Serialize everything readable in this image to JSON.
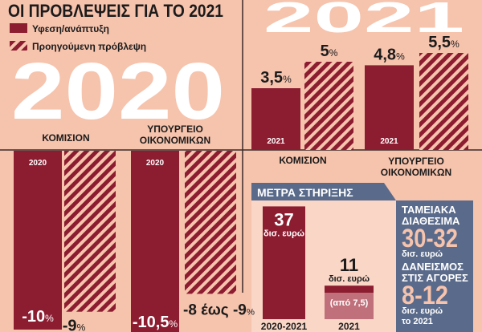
{
  "title": "ΟΙ ΠΡΟΒΛΕΨΕΙΣ ΓΙΑ ΤΟ 2021",
  "legend": [
    {
      "label": "Υφεση/ανάπτυξη",
      "style": "solid"
    },
    {
      "label": "Προηγούμενη πρόβλεψη",
      "style": "hatched"
    }
  ],
  "colors": {
    "background": "#f6c3ad",
    "bar": "#8c1c30",
    "bar_light": "#c0707a",
    "panel": "#5a6a8a",
    "panel_text_accent": "#f6c3ad",
    "inner_bg": "#f9d6c6"
  },
  "percent_sign": "%",
  "chart_data": [
    {
      "type": "bar",
      "backdrop_label": "2020",
      "categories": [
        "ΚΟΜΙΣΙΟΝ",
        "ΥΠΟΥΡΓΕΙΟ ΟΙΚΟΝΟΜΙΚΩΝ"
      ],
      "category_lines": [
        [
          "ΚΟΜΙΣΙΟΝ"
        ],
        [
          "ΥΠΟΥΡΓΕΙΟ",
          "ΟΙΚΟΝΟΜΙΚΩΝ"
        ]
      ],
      "bar_year_label": "2020",
      "unit": "%",
      "series": [
        {
          "name": "Υφεση/ανάπτυξη",
          "values": [
            -10,
            -10.5
          ],
          "labels": [
            "-10",
            "-10,5"
          ]
        },
        {
          "name": "Προηγούμενη πρόβλεψη",
          "values": [
            -9,
            -8
          ],
          "value_ranges": [
            null,
            [
              -8,
              -9
            ]
          ],
          "labels": [
            "-9",
            "-8 έως -9"
          ]
        }
      ]
    },
    {
      "type": "bar",
      "backdrop_label": "2021",
      "categories": [
        "ΚΟΜΙΣΙΟΝ",
        "ΥΠΟΥΡΓΕΙΟ ΟΙΚΟΝΟΜΙΚΩΝ"
      ],
      "category_lines": [
        [
          "ΚΟΜΙΣΙΟΝ"
        ],
        [
          "ΥΠΟΥΡΓΕΙΟ",
          "ΟΙΚΟΝΟΜΙΚΩΝ"
        ]
      ],
      "bar_year_label": "2021",
      "unit": "%",
      "series": [
        {
          "name": "Υφεση/ανάπτυξη",
          "values": [
            3.5,
            4.8
          ],
          "labels": [
            "3,5",
            "4,8"
          ]
        },
        {
          "name": "Προηγούμενη πρόβλεψη",
          "values": [
            5,
            5.5
          ],
          "labels": [
            "5",
            "5,5"
          ]
        }
      ]
    },
    {
      "type": "bar",
      "title": "ΜΕΤΡΑ ΣΤΗΡΙΞΗΣ",
      "categories": [
        "2020-2021",
        "2021"
      ],
      "unit": "δισ. ευρώ",
      "values": [
        37,
        11
      ],
      "labels": [
        "37",
        "11"
      ],
      "sub_value": {
        "value": 7.5,
        "label": "(από 7,5)"
      }
    }
  ],
  "side_panel": {
    "cash_title": [
      "ΤΑΜΕΙΑΚΑ",
      "ΔΙΑΘΕΣΙΜΑ"
    ],
    "cash_value": "30-32",
    "cash_unit": "δισ. ευρώ",
    "borrow_title": [
      "ΔΑΝΕΙΣΜΟΣ",
      "ΣΤΙΣ ΑΓΟΡΕΣ"
    ],
    "borrow_value": "8-12",
    "borrow_unit": "δισ. ευρώ",
    "borrow_note": "το 2021"
  }
}
